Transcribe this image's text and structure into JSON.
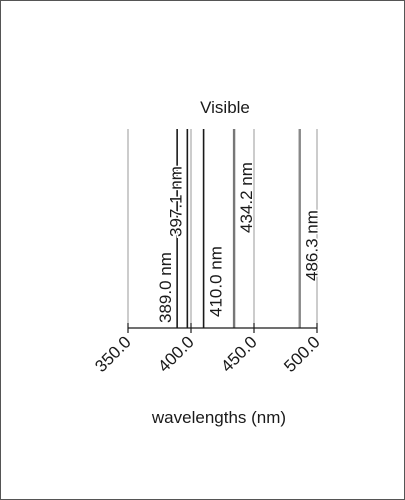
{
  "figure": {
    "region_label": "Visible",
    "xlabel": "wavelengths (nm)",
    "xlim": [
      350.0,
      500.0
    ],
    "ticks": [
      "350.0",
      "400.0",
      "450.0",
      "500.0"
    ],
    "tick_values": [
      350,
      400,
      450,
      500
    ]
  },
  "chart_data": {
    "type": "line",
    "region_label": "Visible",
    "xlabel": "wavelengths (nm)",
    "xlim": [
      350.0,
      500.0
    ],
    "x_ticks": [
      "350.0",
      "400.0",
      "450.0",
      "500.0"
    ],
    "spectral_lines": [
      {
        "wavelength": 389.0,
        "label": "389.0 nm",
        "color": "#1a1a1a"
      },
      {
        "wavelength": 397.1,
        "label": "397.1 nm",
        "color": "#1a1a1a"
      },
      {
        "wavelength": 410.0,
        "label": "410.0 nm",
        "color": "#1a1a1a"
      },
      {
        "wavelength": 434.2,
        "label": "434.2 nm",
        "color": "#777777"
      },
      {
        "wavelength": 486.3,
        "label": "486.3 nm",
        "color": "#888888"
      }
    ],
    "background_lines": [
      400.0,
      450.0,
      500.0
    ],
    "colors": {
      "axis": "#1a1a1a",
      "frame": "#555555",
      "background_line": "#9a9a9a"
    }
  }
}
